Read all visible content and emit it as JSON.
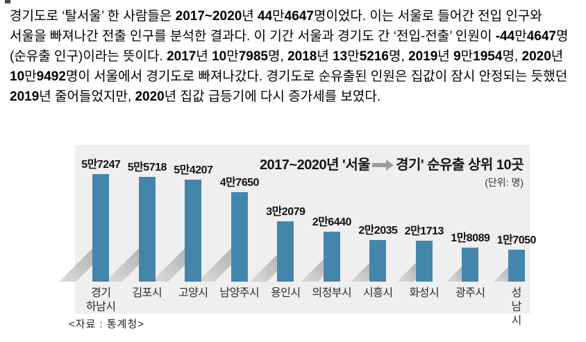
{
  "article": {
    "paragraph": "경기도로 ‘탈서울’ 한 사람들은 2017~2020년 44만4647명이었다. 이는 서울로 들어간 전입 인구와 서울을 빠져나간 전출 인구를 분석한 결과다. 이 기간 서울과 경기도 간 ‘전입-전출’ 인원이 -44만4647명(순유출 인구)이라는 뜻이다. 2017년 10만7985명, 2018년 13만5216명, 2019년 9만1954명, 2020년 10만9492명이 서울에서 경기도로 빠져나갔다. 경기도로 순유출된 인원은 집값이 잠시 안정되는 듯했던 2019년 줄어들었지만, 2020년 집값 급등기에 다시 증가세를 보였다."
  },
  "chart": {
    "title_left": "2017~2020년 '서울",
    "title_right": "경기' 순유출 상위 10곳",
    "unit_label": "(단위: 명)",
    "source": "<자료 : 통계청>",
    "colors": {
      "bar": "#4486ab",
      "panel_bg": "#efefef",
      "shadow": "#c3c3c3",
      "arrow": "#9c9c9c"
    },
    "category_labels": [
      "경기\n하남시",
      "김포시",
      "고양시",
      "남양주시",
      "용인시",
      "의정부시",
      "시흥시",
      "화성시",
      "광주시",
      "성남시"
    ]
  },
  "chart_data": {
    "type": "bar",
    "title": "2017~2020년 '서울 → 경기' 순유출 상위 10곳",
    "unit": "명",
    "categories": [
      "경기 하남시",
      "김포시",
      "고양시",
      "남양주시",
      "용인시",
      "의정부시",
      "시흥시",
      "화성시",
      "광주시",
      "성남시"
    ],
    "values": [
      57247,
      55718,
      54207,
      47650,
      32079,
      26440,
      22035,
      21713,
      18089,
      17050
    ],
    "value_labels": [
      "5만7247",
      "5만5718",
      "5만4207",
      "4만7650",
      "3만2079",
      "2만6440",
      "2만2035",
      "2만1713",
      "1만8089",
      "1만7050"
    ],
    "source": "통계청",
    "ylim": [
      0,
      57247
    ],
    "grid": false,
    "legend": false,
    "xlabel": "",
    "ylabel": ""
  }
}
